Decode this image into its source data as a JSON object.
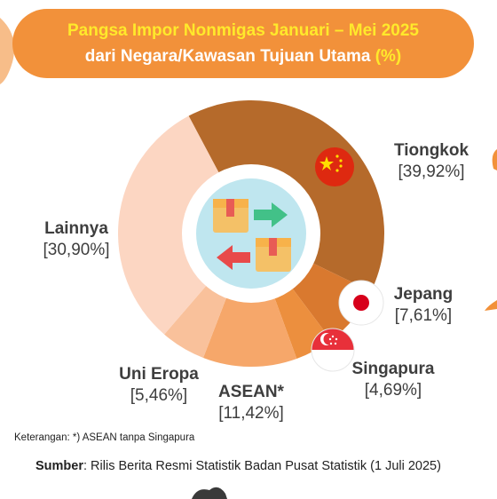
{
  "header": {
    "title_line1": "Pangsa Impor Nonmigas Januari – Mei 2025",
    "title_line2": "dari Negara/Kawasan Tujuan Utama",
    "unit": "(%)"
  },
  "chart_data": {
    "type": "pie",
    "variant": "donut",
    "categories": [
      "Tiongkok",
      "Jepang",
      "Singapura",
      "ASEAN*",
      "Uni Eropa",
      "Lainnya"
    ],
    "values": [
      39.92,
      7.61,
      4.69,
      11.42,
      5.46,
      30.9
    ],
    "value_labels": [
      "[39,92%]",
      "[7,61%]",
      "[4,69%]",
      "[11,42%]",
      "[5,46%]",
      "[30,90%]"
    ],
    "colors": [
      "#b56a2b",
      "#d9792f",
      "#ec8f3e",
      "#f6a76a",
      "#f9c19b",
      "#fcd6c2"
    ],
    "legend": "none"
  },
  "icons": {
    "center": "import-export-boxes-icon",
    "tiongkok": "china-flag-icon",
    "jepang": "japan-flag-icon",
    "singapura": "singapore-flag-icon"
  },
  "footer": {
    "note": "Keterangan: *) ASEAN tanpa Singapura",
    "source_label": "Sumber",
    "source_text": ": Rilis Berita Resmi Statistik Badan Pusat Statistik (1 Juli 2025)"
  }
}
